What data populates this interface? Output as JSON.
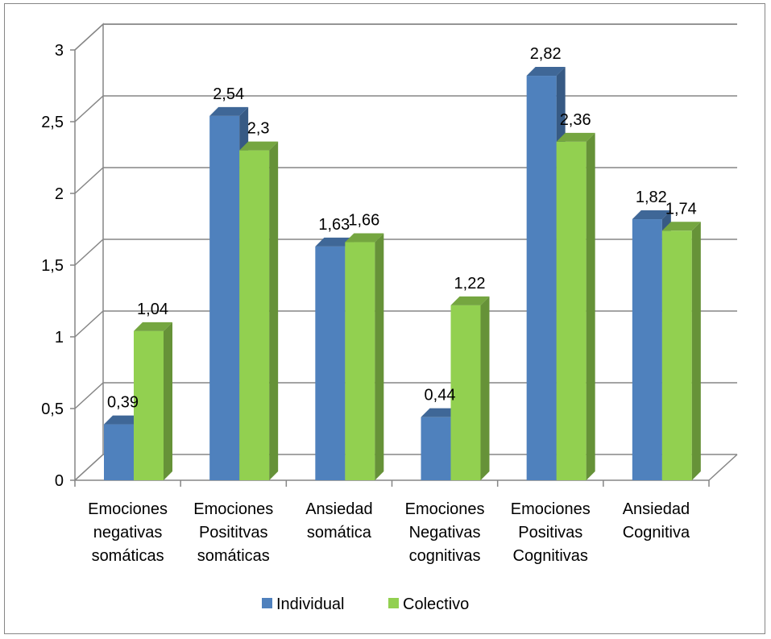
{
  "chart_data": {
    "type": "bar",
    "title": "",
    "xlabel": "",
    "ylabel": "",
    "ylim": [
      0,
      3
    ],
    "yticks": [
      "0",
      "0,5",
      "1",
      "1,5",
      "2",
      "2,5",
      "3"
    ],
    "ytick_values": [
      0,
      0.5,
      1,
      1.5,
      2,
      2.5,
      3
    ],
    "grid": true,
    "legend_position": "bottom",
    "categories": [
      [
        "Emociones",
        "negativas",
        "somáticas"
      ],
      [
        "Emociones",
        "Posititvas",
        "somáticas"
      ],
      [
        "Ansiedad",
        "somática"
      ],
      [
        "Emociones",
        "Negativas",
        "cognitivas"
      ],
      [
        "Emociones",
        "Positivas",
        "Cognitivas"
      ],
      [
        "Ansiedad",
        "Cognitiva"
      ]
    ],
    "series": [
      {
        "name": "Individual",
        "color": "#4F81BD",
        "values": [
          0.39,
          2.54,
          1.63,
          0.44,
          2.82,
          1.82
        ],
        "labels": [
          "0,39",
          "2,54",
          "1,63",
          "0,44",
          "2,82",
          "1,82"
        ]
      },
      {
        "name": "Colectivo",
        "color": "#92D050",
        "values": [
          1.04,
          2.3,
          1.66,
          1.22,
          2.36,
          1.74
        ],
        "labels": [
          "1,04",
          "2,3",
          "1,66",
          "1,22",
          "2,36",
          "1,74"
        ]
      }
    ]
  }
}
